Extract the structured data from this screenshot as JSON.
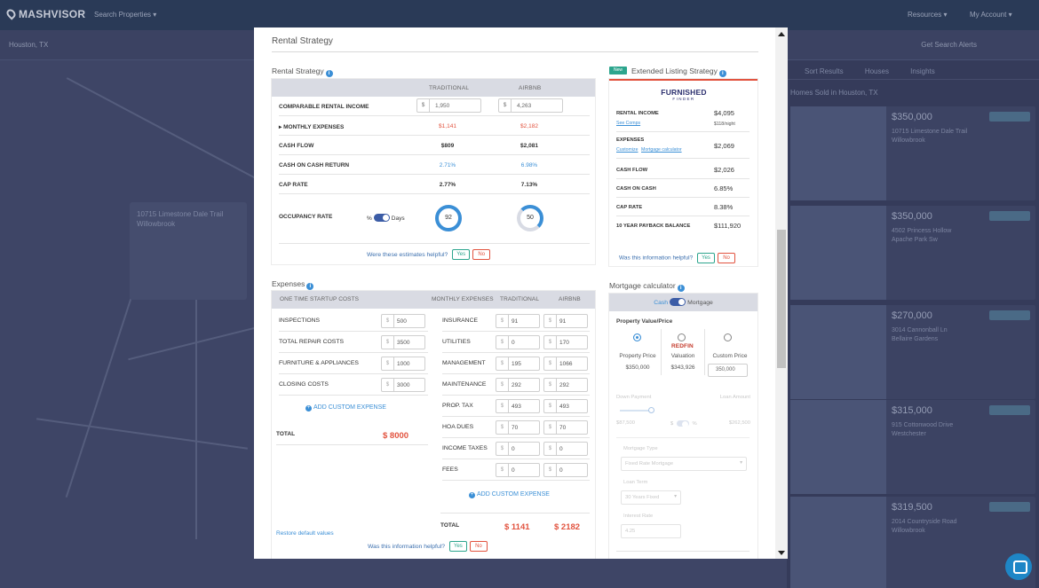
{
  "background": {
    "logo": "MASHVISOR",
    "search_menu": "Search Properties",
    "top_right_1": "Resources",
    "top_right_2": "My Account",
    "location": "Houston, TX",
    "save_search": "Get Search Alerts",
    "tab_1": "Sort Results",
    "tab_2": "Houses",
    "tab_3": "Insights",
    "listing_header": "Homes Sold in Houston, TX",
    "listings": [
      {
        "price": "$350,000",
        "addr": "10715 Limestone Dale Trail",
        "hood": "Willowbrook"
      },
      {
        "price": "$350,000",
        "addr": "4502 Princess Hollow",
        "hood": "Apache Park Sw"
      },
      {
        "price": "$270,000",
        "addr": "3014 Cannonball Ln",
        "hood": "Bellaire Gardens"
      },
      {
        "price": "$315,000",
        "addr": "915 Cottonwood Drive",
        "hood": "Westchester"
      },
      {
        "price": "$319,500",
        "addr": "2014 Countryside Road",
        "hood": "Willowbrook"
      }
    ],
    "map_card_title": "10715 Limestone Dale Trail",
    "map_card_sub": "Willowbrook"
  },
  "modal": {
    "title": "Rental Strategy",
    "rental_strategy": {
      "section_title": "Rental Strategy",
      "col_traditional": "TRADITIONAL",
      "col_airbnb": "AIRBNB",
      "comparable_label": "COMPARABLE RENTAL INCOME",
      "comparable_traditional": "1,950",
      "comparable_airbnb": "4,263",
      "currency": "$",
      "rows": [
        {
          "label": "▸ MONTHLY EXPENSES",
          "traditional": "$1,141",
          "airbnb": "$2,182",
          "color": "red"
        },
        {
          "label": "CASH FLOW",
          "traditional": "$809",
          "airbnb": "$2,081",
          "color": "dark"
        },
        {
          "label": "CASH ON CASH RETURN",
          "traditional": "2.71%",
          "airbnb": "6.98%",
          "color": "blue"
        },
        {
          "label": "CAP RATE",
          "traditional": "2.77%",
          "airbnb": "7.13%",
          "color": "dark"
        }
      ],
      "occupancy_label": "OCCUPANCY RATE",
      "occupancy_pct": "%",
      "occupancy_days": "Days",
      "occupancy_traditional": "92",
      "occupancy_airbnb": "50",
      "helpful_question": "Were these estimates helpful?",
      "yes": "Yes",
      "no": "No"
    },
    "extended": {
      "badge": "New",
      "section_title": "Extended Listing Strategy",
      "logo_top": "FURNISHED",
      "logo_bottom": "FINDER",
      "rental_income_label": "RENTAL INCOME",
      "rental_income_value": "$4,095",
      "see_comps": "See Comps",
      "per_night": "$118/night",
      "expenses_label": "EXPENSES",
      "customize": "Customize",
      "mortgage_calc": "Mortgage calculator",
      "expenses_value": "$2,069",
      "cash_flow_label": "CASH FLOW",
      "cash_flow_value": "$2,026",
      "coc_label": "CASH ON CASH",
      "coc_value": "6.85%",
      "cap_label": "CAP RATE",
      "cap_value": "8.38%",
      "payback_label": "10 YEAR PAYBACK BALANCE",
      "payback_value": "$111,920",
      "helpful_question": "Was this information helpful?",
      "yes": "Yes",
      "no": "No"
    },
    "expenses": {
      "section_title": "Expenses",
      "col_startup": "ONE TIME STARTUP COSTS",
      "col_monthly": "MONTHLY EXPENSES",
      "col_traditional": "TRADITIONAL",
      "col_airbnb": "AIRBNB",
      "currency": "$",
      "startup": [
        {
          "label": "INSPECTIONS",
          "value": "500"
        },
        {
          "label": "TOTAL REPAIR COSTS",
          "value": "3500"
        },
        {
          "label": "FURNITURE & APPLIANCES",
          "value": "1000"
        },
        {
          "label": "CLOSING COSTS",
          "value": "3000"
        }
      ],
      "monthly": [
        {
          "label": "INSURANCE",
          "traditional": "91",
          "airbnb": "91"
        },
        {
          "label": "UTILITIES",
          "traditional": "0",
          "airbnb": "170"
        },
        {
          "label": "MANAGEMENT",
          "traditional": "195",
          "airbnb": "1066"
        },
        {
          "label": "MAINTENANCE",
          "traditional": "292",
          "airbnb": "292"
        },
        {
          "label": "PROP. TAX",
          "traditional": "493",
          "airbnb": "493"
        },
        {
          "label": "HOA DUES",
          "traditional": "70",
          "airbnb": "70"
        },
        {
          "label": "INCOME TAXES",
          "traditional": "0",
          "airbnb": "0"
        },
        {
          "label": "FEES",
          "traditional": "0",
          "airbnb": "0"
        }
      ],
      "add_custom": "ADD CUSTOM EXPENSE",
      "total_label": "TOTAL",
      "startup_total": "$ 8000",
      "monthly_total_traditional": "$ 1141",
      "monthly_total_airbnb": "$ 2182",
      "restore_defaults": "Restore default values",
      "helpful_question": "Was this information helpful?",
      "yes": "Yes",
      "no": "No"
    },
    "mortgage": {
      "section_title": "Mortgage calculator",
      "cash": "Cash",
      "mortgage": "Mortgage",
      "property_value_label": "Property Value/Price",
      "opt1_label": "Property Price",
      "opt1_value": "$350,000",
      "opt2_logo": "REDFIN",
      "opt2_label": "Valuation",
      "opt2_value": "$343,926",
      "opt3_label": "Custom Price",
      "opt3_value": "350,000",
      "down_payment": "Down Payment",
      "loan_amount": "Loan Amount",
      "down_value": "$87,500",
      "loan_value": "$262,500",
      "mortgage_type_label": "Mortgage Type",
      "mortgage_type_value": "Fixed Rate Mortgage",
      "loan_term_label": "Loan Term",
      "loan_term_value": "30 Years Fixed",
      "interest_label": "Interest Rate",
      "interest_value": "4.25"
    }
  }
}
